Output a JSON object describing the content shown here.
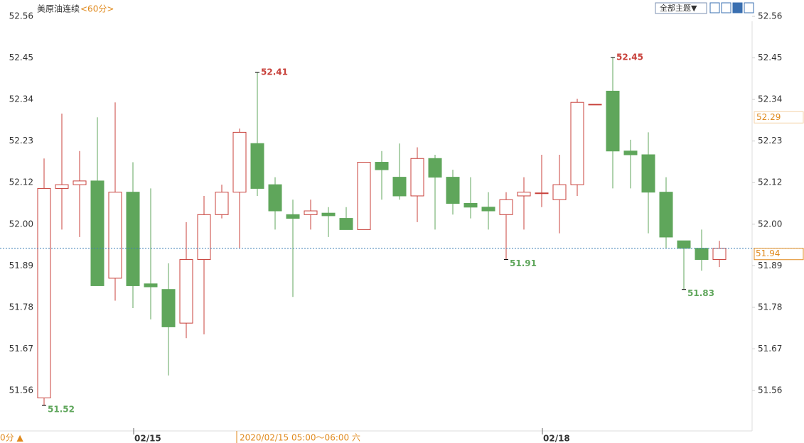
{
  "chart_data": {
    "type": "candlestick",
    "title": "美原油连续",
    "period": "<60分>",
    "theme_button": "全部主题▼",
    "period_footer": "0分 ▲",
    "cursor_label": "2020/02/15 05:00～06:00 六",
    "categories": [
      "",
      null,
      null,
      null,
      null,
      "02/15",
      null,
      null,
      null,
      null,
      null,
      null,
      null,
      null,
      null,
      null,
      null,
      null,
      null,
      null,
      null,
      null,
      null,
      null,
      null,
      null,
      null,
      null,
      "02/18",
      null,
      null,
      null,
      null,
      null,
      null,
      null,
      null,
      null,
      null
    ],
    "open": [
      51.54,
      52.1,
      52.11,
      52.12,
      51.86,
      52.09,
      51.845,
      51.83,
      51.74,
      51.91,
      52.03,
      52.09,
      52.22,
      52.11,
      52.03,
      52.03,
      52.034,
      52.02,
      51.99,
      52.17,
      52.13,
      52.08,
      52.18,
      52.13,
      52.06,
      52.05,
      52.03,
      52.08,
      52.087,
      52.07,
      52.11,
      52.325,
      52.36,
      52.2,
      52.19,
      52.09,
      51.96,
      51.94,
      51.91
    ],
    "high": [
      52.18,
      52.3,
      52.2,
      52.29,
      52.33,
      52.17,
      52.1,
      51.9,
      52.01,
      52.08,
      52.11,
      52.26,
      52.41,
      52.13,
      52.07,
      52.07,
      52.05,
      52.05,
      52.17,
      52.2,
      52.22,
      52.21,
      52.19,
      52.15,
      52.13,
      52.09,
      52.09,
      52.13,
      52.19,
      52.19,
      52.34,
      52.325,
      52.45,
      52.23,
      52.25,
      52.13,
      51.96,
      51.99,
      51.96
    ],
    "low": [
      51.52,
      51.99,
      51.97,
      51.84,
      51.8,
      51.78,
      51.75,
      51.6,
      51.7,
      51.71,
      52.02,
      51.94,
      52.08,
      51.99,
      51.81,
      51.99,
      51.97,
      51.99,
      51.99,
      52.07,
      52.07,
      52.01,
      51.99,
      52.03,
      52.02,
      51.99,
      51.91,
      51.99,
      52.05,
      51.98,
      52.08,
      52.325,
      52.1,
      52.1,
      51.98,
      51.94,
      51.83,
      51.88,
      51.89
    ],
    "close": [
      52.1,
      52.11,
      52.12,
      51.84,
      52.09,
      51.84,
      51.837,
      51.73,
      51.91,
      52.03,
      52.09,
      52.25,
      52.1,
      52.04,
      52.02,
      52.04,
      52.027,
      51.99,
      52.17,
      52.15,
      52.08,
      52.18,
      52.13,
      52.06,
      52.05,
      52.04,
      52.07,
      52.09,
      52.088,
      52.11,
      52.33,
      52.325,
      52.2,
      52.19,
      52.09,
      51.97,
      51.94,
      51.91,
      51.94
    ],
    "up_color": "#c8413b",
    "down_color": "#5fa65b",
    "annotations": [
      {
        "candle": 0,
        "field": "low"
      },
      {
        "candle": 12,
        "field": "high"
      },
      {
        "candle": 26,
        "field": "low"
      },
      {
        "candle": 32,
        "field": "high"
      },
      {
        "candle": 36,
        "field": "low"
      }
    ],
    "last_price": 51.94,
    "price_marker": 52.29,
    "ylim": [
      51.5,
      52.6
    ],
    "yticks": [
      {
        "value": 51.56,
        "label": "51.56"
      },
      {
        "value": 51.6711,
        "label": "51.67"
      },
      {
        "value": 51.7822,
        "label": "51.78"
      },
      {
        "value": 51.8933,
        "label": "51.89"
      },
      {
        "value": 52.0044,
        "label": "52.00"
      },
      {
        "value": 52.1156,
        "label": "52.12"
      },
      {
        "value": 52.2267,
        "label": "52.23"
      },
      {
        "value": 52.3378,
        "label": "52.34"
      },
      {
        "value": 52.4489,
        "label": "52.45"
      },
      {
        "value": 52.56,
        "label": "52.56"
      }
    ]
  }
}
